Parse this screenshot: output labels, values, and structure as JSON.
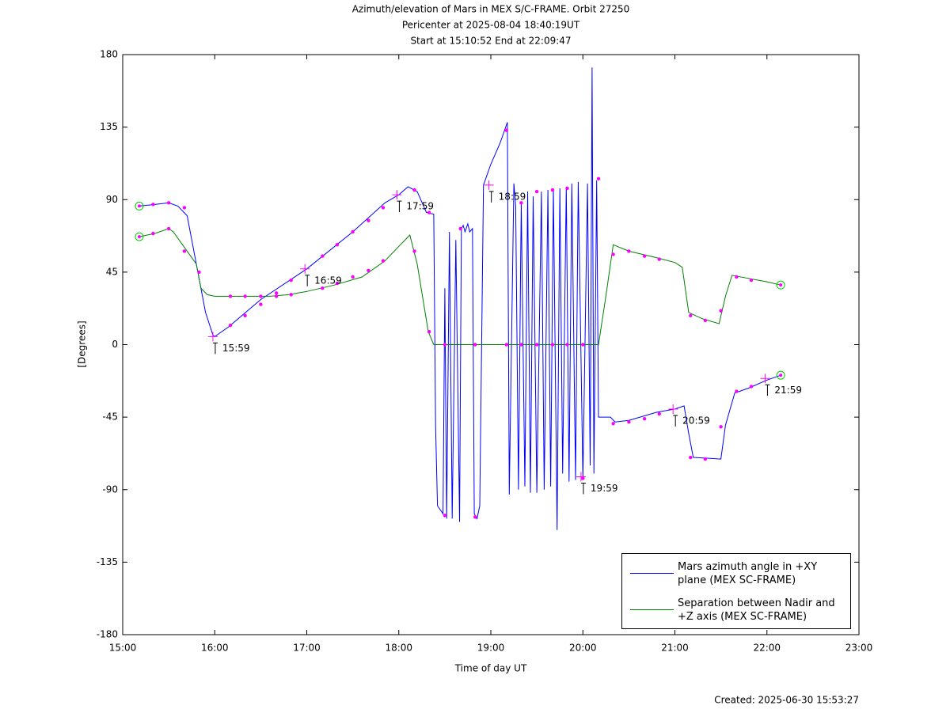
{
  "chart_data": {
    "type": "line",
    "title": "Azimuth/elevation of Mars in MEX S/C-FRAME.  Orbit 27250",
    "subtitle": [
      "Pericenter at 2025-08-04 18:40:19UT",
      "Start at 15:10:52 End at 22:09:47"
    ],
    "xlabel": "Time of day UT",
    "ylabel": "[Degrees]",
    "footer": "Created: 2025-06-30 15:53:27",
    "xlim": [
      15,
      23
    ],
    "xticks": [
      {
        "value": 15,
        "label": "15:00"
      },
      {
        "value": 16,
        "label": "16:00"
      },
      {
        "value": 17,
        "label": "17:00"
      },
      {
        "value": 18,
        "label": "18:00"
      },
      {
        "value": 19,
        "label": "19:00"
      },
      {
        "value": 20,
        "label": "20:00"
      },
      {
        "value": 21,
        "label": "21:00"
      },
      {
        "value": 22,
        "label": "22:00"
      },
      {
        "value": 23,
        "label": "23:00"
      }
    ],
    "ylim": [
      -180,
      180
    ],
    "yticks": [
      -180,
      -135,
      -90,
      -45,
      0,
      45,
      90,
      135,
      180
    ],
    "legend": "bottom-right",
    "marker_color": "#ff00ff",
    "endpoint_color": "#00cc00",
    "series": [
      {
        "name": "Mars azimuth angle in +XY plane (MEX SC-FRAME)",
        "color": "#0000ff",
        "x": [
          15.18,
          15.35,
          15.5,
          15.6,
          15.7,
          15.8,
          15.9,
          15.98,
          16.0,
          16.15,
          16.5,
          17.0,
          17.5,
          17.85,
          18.0,
          18.1,
          18.2,
          18.3,
          18.38,
          18.4,
          18.42,
          18.48,
          18.5,
          18.52,
          18.55,
          18.58,
          18.62,
          18.66,
          18.68,
          18.7,
          18.72,
          18.75,
          18.77,
          18.8,
          18.82,
          18.85,
          18.88,
          18.92,
          19.0,
          19.1,
          19.18,
          19.2,
          19.25,
          19.27,
          19.3,
          19.33,
          19.37,
          19.4,
          19.43,
          19.46,
          19.5,
          19.55,
          19.58,
          19.62,
          19.65,
          19.68,
          19.72,
          19.75,
          19.78,
          19.82,
          19.85,
          19.88,
          19.92,
          19.95,
          20.0,
          20.05,
          20.08,
          20.1,
          20.12,
          20.15,
          20.17,
          20.3,
          20.35,
          20.5,
          20.8,
          21.0,
          21.1,
          21.15,
          21.2,
          21.5,
          21.55,
          21.65,
          21.8,
          22.0,
          22.15
        ],
        "values": [
          86,
          87,
          88,
          86,
          80,
          50,
          20,
          6,
          5,
          11,
          28,
          47,
          70,
          88,
          93,
          98,
          95,
          82,
          81,
          -50,
          -100,
          -105,
          35,
          -108,
          70,
          -108,
          65,
          -110,
          72,
          74,
          70,
          75,
          70,
          72,
          -105,
          -108,
          -100,
          99,
          112,
          125,
          138,
          -93,
          100,
          86,
          -90,
          88,
          -88,
          95,
          -92,
          92,
          -92,
          95,
          -90,
          96,
          -88,
          97,
          -115,
          97,
          -80,
          98,
          -85,
          100,
          -84,
          101,
          -83,
          100,
          -75,
          172,
          -80,
          102,
          -45,
          -45,
          -48,
          -47,
          -42,
          -40,
          -38,
          -55,
          -70,
          -71,
          -50,
          -30,
          -27,
          -22,
          -19
        ],
        "marker_x": [
          15.33,
          15.5,
          15.67,
          16.17,
          16.33,
          16.5,
          16.67,
          16.83,
          17.17,
          17.33,
          17.5,
          17.67,
          17.83,
          18.17,
          18.33,
          18.5,
          18.67,
          18.83,
          19.17,
          19.33,
          19.5,
          19.67,
          19.83,
          20.0,
          20.17,
          20.33,
          20.5,
          20.67,
          20.83,
          21.17,
          21.33,
          21.5,
          21.67,
          21.83
        ],
        "marker_values": [
          87,
          88,
          85,
          12,
          18,
          25,
          32,
          40,
          55,
          62,
          70,
          77,
          85,
          96,
          82,
          -106,
          72,
          -107,
          133,
          88,
          95,
          96,
          97,
          -83,
          103,
          -49,
          -48,
          -46,
          -43,
          -70,
          -71,
          -51,
          -29,
          -26
        ]
      },
      {
        "name": "Separation between Nadir and +Z axis (MEX SC-FRAME)",
        "color": "#008000",
        "x": [
          15.18,
          15.35,
          15.5,
          15.55,
          15.7,
          15.8,
          15.85,
          15.92,
          16.0,
          16.3,
          16.6,
          16.8,
          17.0,
          17.3,
          17.6,
          17.85,
          18.0,
          18.12,
          18.2,
          18.32,
          18.38,
          20.17,
          20.25,
          20.33,
          20.5,
          20.8,
          21.0,
          21.08,
          21.15,
          21.3,
          21.48,
          21.55,
          21.62,
          22.0,
          22.15
        ],
        "values": [
          67,
          69,
          72,
          70,
          58,
          50,
          35,
          31,
          30,
          30,
          30,
          31,
          33,
          37,
          42,
          52,
          61,
          68,
          50,
          8,
          0,
          0,
          30,
          62,
          58,
          54,
          51,
          48,
          20,
          16,
          13,
          30,
          43,
          39,
          37
        ],
        "marker_x": [
          15.33,
          15.5,
          15.67,
          15.83,
          16.17,
          16.33,
          16.5,
          16.67,
          16.83,
          17.17,
          17.33,
          17.5,
          17.67,
          17.83,
          18.17,
          18.33,
          18.5,
          18.83,
          19.17,
          19.33,
          19.5,
          19.67,
          19.83,
          20.0,
          20.33,
          20.5,
          20.67,
          20.83,
          21.17,
          21.33,
          21.5,
          21.67,
          21.83
        ],
        "marker_values": [
          69,
          72,
          58,
          45,
          30,
          30,
          30,
          30,
          31,
          35,
          38,
          42,
          46,
          52,
          58,
          8,
          0,
          0,
          0,
          0,
          0,
          0,
          0,
          0,
          56,
          58,
          55,
          53,
          18,
          15,
          21,
          42,
          40
        ]
      }
    ],
    "annotations": [
      {
        "text": "15:59",
        "x": 15.98,
        "y": 5
      },
      {
        "text": "16:59",
        "x": 16.98,
        "y": 47
      },
      {
        "text": "17:59",
        "x": 17.98,
        "y": 93
      },
      {
        "text": "18:59",
        "x": 18.98,
        "y": 99
      },
      {
        "text": "19:59",
        "x": 19.98,
        "y": -82
      },
      {
        "text": "20:59",
        "x": 20.98,
        "y": -40
      },
      {
        "text": "21:59",
        "x": 21.98,
        "y": -21
      }
    ]
  }
}
